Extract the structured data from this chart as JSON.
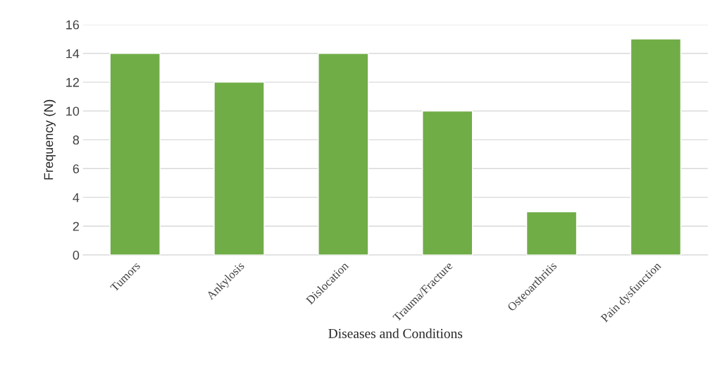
{
  "chart_data": {
    "type": "bar",
    "categories": [
      "Tumors",
      "Ankylosis",
      "Dislocation",
      "Trauma/Fracture",
      "Osteoarthritis",
      "Pain dysfunction"
    ],
    "values": [
      14,
      12,
      14,
      10,
      3,
      15
    ],
    "color": "#70ad47",
    "xlabel": "Diseases and Conditions",
    "ylabel": "Frequency (N)",
    "ylim": [
      0,
      16
    ],
    "yticks": [
      0,
      2,
      4,
      6,
      8,
      10,
      12,
      14,
      16
    ],
    "grid": "y",
    "legend": false
  }
}
